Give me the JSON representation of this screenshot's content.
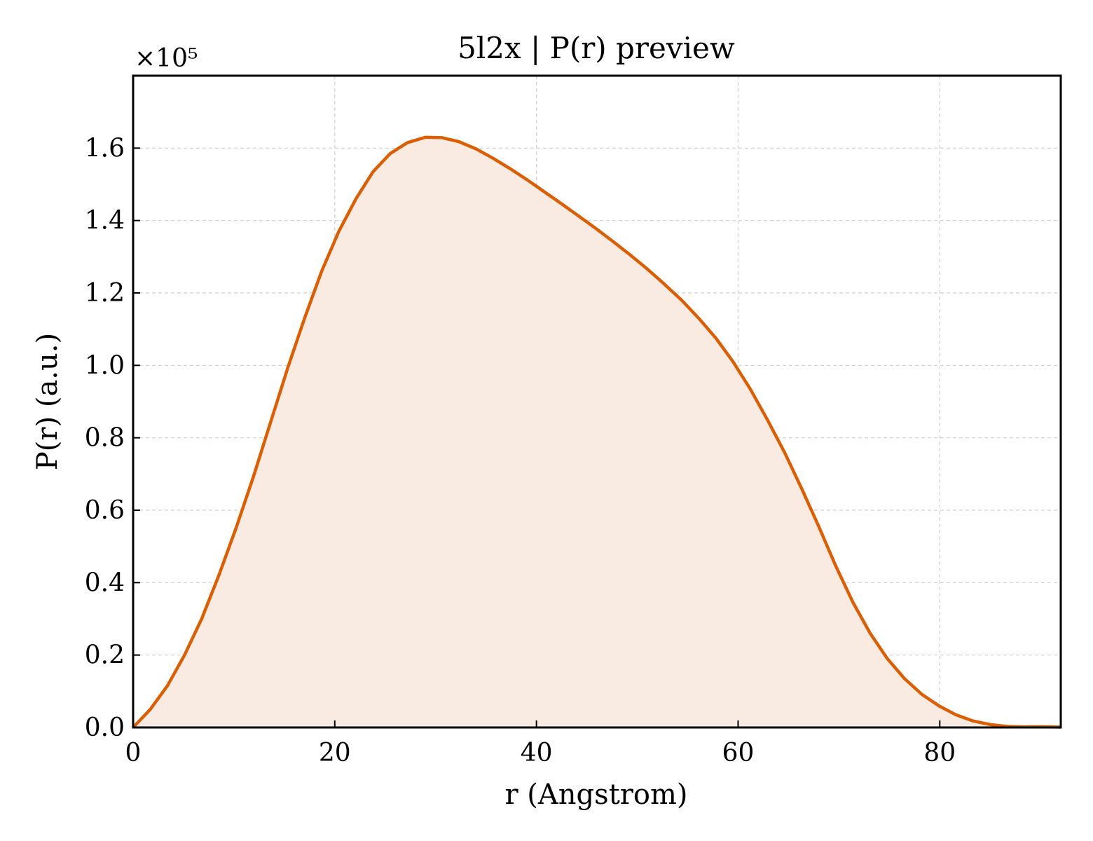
{
  "chart_data": {
    "type": "area",
    "title": "5l2x | P(r) preview",
    "xlabel": "r (Angstrom)",
    "ylabel": "P(r) (a.u.)",
    "y_multiplier_label": "×10⁵",
    "y_scale_factor": 100000,
    "xlim": [
      0,
      92
    ],
    "ylim": [
      0,
      1.8
    ],
    "x_ticks": [
      0,
      20,
      40,
      60,
      80
    ],
    "x_tick_labels": [
      "0",
      "20",
      "40",
      "60",
      "80"
    ],
    "y_ticks": [
      0,
      0.2,
      0.4,
      0.6,
      0.8,
      1.0,
      1.2,
      1.4,
      1.6
    ],
    "y_tick_labels": [
      "0.0",
      "0.2",
      "0.4",
      "0.6",
      "0.8",
      "1.0",
      "1.2",
      "1.4",
      "1.6"
    ],
    "grid": true,
    "line_color": "#d95f02",
    "fill_color": "#f9ebe1",
    "series": [
      {
        "x": [
          0,
          1.7,
          3.4,
          5.1,
          6.8,
          8.5,
          10.2,
          11.9,
          13.6,
          15.3,
          17.0,
          18.7,
          20.4,
          22.1,
          23.8,
          25.5,
          27.2,
          29.0,
          30.6,
          32.3,
          34.0,
          35.7,
          37.4,
          39.1,
          40.8,
          42.5,
          44.2,
          45.9,
          47.6,
          49.3,
          51.0,
          52.7,
          54.4,
          56.1,
          57.8,
          59.5,
          61.2,
          62.9,
          64.6,
          66.3,
          68.0,
          69.7,
          71.4,
          73.1,
          74.8,
          76.5,
          78.2,
          79.9,
          81.6,
          83.3,
          85.0,
          86.7,
          88.4,
          90.1,
          92.0
        ],
        "values": [
          0.0,
          0.05,
          0.115,
          0.2,
          0.3,
          0.42,
          0.55,
          0.69,
          0.84,
          0.99,
          1.13,
          1.26,
          1.37,
          1.46,
          1.535,
          1.585,
          1.615,
          1.63,
          1.629,
          1.618,
          1.598,
          1.572,
          1.543,
          1.512,
          1.479,
          1.446,
          1.412,
          1.378,
          1.342,
          1.305,
          1.266,
          1.224,
          1.18,
          1.13,
          1.075,
          1.01,
          0.935,
          0.85,
          0.76,
          0.66,
          0.555,
          0.445,
          0.345,
          0.26,
          0.19,
          0.135,
          0.092,
          0.06,
          0.035,
          0.018,
          0.008,
          0.003,
          0.0015,
          0.002,
          0.001
        ]
      }
    ]
  }
}
